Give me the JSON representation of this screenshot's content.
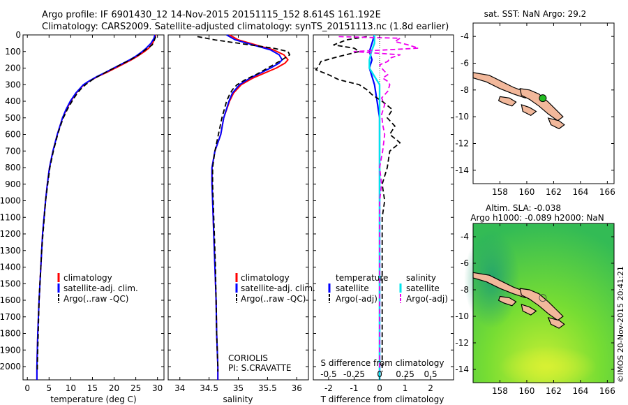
{
  "header": {
    "line1": "Argo profile: IF 6901430_12 14-Nov-2015 20151115_152 8.614S 161.192E",
    "line2": "Climatology: CARS2009. Satellite-adjusted climatology: synTS_20151113.nc (1.8d earlier)"
  },
  "colors": {
    "climatology": "#ff0000",
    "satellite": "#0000ff",
    "argo": "#000000",
    "sat_salinity": "#00e5ee",
    "argo_salinity_diff": "#ee00ee",
    "land": "#f2b89b",
    "float_marker": "#22bb22",
    "sla_field": "#55cc44"
  },
  "legend": {
    "climatology": "climatology",
    "satellite_adj": "satellite-adj. clim.",
    "argo_raw": "Argo(..raw -QC)",
    "temperature_head": "temperature",
    "salinity_head": "salinity",
    "satellite": "satellite",
    "argo_adj": "Argo(-adj)"
  },
  "credits": {
    "centre": "CORIOLIS",
    "pi": "PI: S.CRAVATTE"
  },
  "side_label": "©IMOS 20-Nov-2015 20:41:21",
  "chart_data": [
    {
      "type": "line",
      "panel": "temperature",
      "xlabel": "temperature (deg C)",
      "xlim": [
        -1,
        31.5
      ],
      "ylim": [
        2080,
        0
      ],
      "xticks": [
        0,
        5,
        10,
        15,
        20,
        25,
        30
      ],
      "yticks": [
        0,
        100,
        200,
        300,
        400,
        500,
        600,
        700,
        800,
        900,
        1000,
        1100,
        1200,
        1300,
        1400,
        1500,
        1600,
        1700,
        1800,
        1900,
        2000
      ],
      "series": [
        {
          "name": "climatology",
          "depth": [
            0,
            20,
            50,
            80,
            100,
            130,
            150,
            180,
            200,
            230,
            250,
            280,
            300,
            350,
            400,
            450,
            500,
            600,
            700,
            800,
            900,
            1000,
            1200,
            1400,
            1600,
            1800,
            2000,
            2080
          ],
          "values": [
            29.6,
            29.4,
            28.9,
            28.0,
            27.0,
            25.3,
            24.0,
            21.8,
            20.3,
            18.0,
            16.3,
            14.2,
            13.0,
            11.3,
            10.0,
            9.0,
            8.1,
            6.9,
            5.9,
            5.1,
            4.6,
            4.2,
            3.5,
            3.1,
            2.7,
            2.4,
            2.2,
            2.2
          ]
        },
        {
          "name": "satellite-adj. clim.",
          "depth": [
            0,
            20,
            50,
            80,
            100,
            130,
            150,
            180,
            200,
            230,
            250,
            280,
            300,
            350,
            400,
            450,
            500,
            600,
            700,
            800,
            900,
            1000,
            1200,
            1400,
            1600,
            1800,
            2000,
            2080
          ],
          "values": [
            29.4,
            29.2,
            28.5,
            27.4,
            26.5,
            24.9,
            23.6,
            21.4,
            19.9,
            17.7,
            16.1,
            14.1,
            12.9,
            11.2,
            9.9,
            8.9,
            8.1,
            6.9,
            5.9,
            5.1,
            4.6,
            4.2,
            3.5,
            3.1,
            2.7,
            2.4,
            2.2,
            2.2
          ]
        },
        {
          "name": "Argo(..raw -QC)",
          "depth": [
            10,
            30,
            60,
            90,
            120,
            150,
            180,
            210,
            240,
            270,
            300,
            330,
            360,
            400,
            450,
            500,
            550,
            600,
            700,
            800,
            900,
            1000,
            1100,
            1200,
            1300,
            1400,
            1500,
            1600,
            1700,
            1800,
            1900,
            2000,
            2030
          ],
          "values": [
            29.6,
            29.3,
            28.8,
            27.2,
            25.7,
            23.8,
            21.4,
            19.2,
            17.0,
            15.0,
            13.4,
            12.2,
            11.3,
            10.3,
            9.2,
            8.3,
            7.6,
            7.0,
            6.0,
            5.2,
            4.7,
            4.2,
            3.9,
            3.6,
            3.3,
            3.1,
            2.9,
            2.7,
            2.6,
            2.5,
            2.4,
            2.3,
            2.3
          ]
        }
      ]
    },
    {
      "type": "line",
      "panel": "salinity",
      "xlabel": "salinity",
      "xlim": [
        33.8,
        36.2
      ],
      "ylim": [
        2080,
        0
      ],
      "xticks": [
        34,
        34.5,
        35,
        35.5,
        36
      ],
      "series": [
        {
          "name": "climatology",
          "depth": [
            0,
            30,
            60,
            90,
            120,
            150,
            170,
            200,
            230,
            260,
            300,
            350,
            400,
            500,
            600,
            700,
            800,
            900,
            1000,
            1200,
            1400,
            1600,
            1800,
            2000,
            2080
          ],
          "values": [
            34.85,
            35.0,
            35.3,
            35.6,
            35.78,
            35.85,
            35.8,
            35.65,
            35.45,
            35.25,
            35.05,
            34.92,
            34.85,
            34.75,
            34.7,
            34.6,
            34.55,
            34.55,
            34.56,
            34.58,
            34.6,
            34.62,
            34.63,
            34.65,
            34.65
          ]
        },
        {
          "name": "satellite-adj. clim.",
          "depth": [
            0,
            30,
            60,
            90,
            120,
            150,
            170,
            200,
            230,
            260,
            300,
            350,
            400,
            500,
            600,
            700,
            800,
            900,
            1000,
            1200,
            1400,
            1600,
            1800,
            2000,
            2080
          ],
          "values": [
            34.8,
            34.95,
            35.25,
            35.55,
            35.7,
            35.75,
            35.7,
            35.55,
            35.38,
            35.2,
            35.02,
            34.9,
            34.84,
            34.75,
            34.7,
            34.6,
            34.55,
            34.55,
            34.56,
            34.58,
            34.6,
            34.62,
            34.63,
            34.65,
            34.65
          ]
        },
        {
          "name": "Argo(..raw -QC)",
          "depth": [
            10,
            30,
            60,
            80,
            100,
            120,
            150,
            180,
            210,
            240,
            270,
            300,
            330,
            360,
            400,
            450,
            500,
            600,
            700,
            800,
            900,
            1000,
            1200,
            1400,
            1600,
            1800,
            2000,
            2030
          ],
          "values": [
            34.3,
            34.6,
            35.2,
            35.6,
            35.85,
            35.88,
            35.75,
            35.6,
            35.45,
            35.3,
            35.12,
            34.98,
            34.9,
            34.85,
            34.8,
            34.76,
            34.72,
            34.66,
            34.6,
            34.56,
            34.56,
            34.57,
            34.59,
            34.61,
            34.62,
            34.63,
            34.65,
            34.65
          ]
        }
      ]
    },
    {
      "type": "line",
      "panel": "difference",
      "xlabel": "T difference from climatology",
      "xlabel_top": "S difference from climatology",
      "xlim": [
        -2.6,
        2.9
      ],
      "ylim": [
        2080,
        0
      ],
      "xticks": [
        -2,
        -1,
        0,
        1,
        2
      ],
      "xticks_S": [
        "-0.5",
        "-0.25",
        "0",
        "0.25",
        "0.5"
      ],
      "series": [
        {
          "name": "temperature satellite",
          "depth": [
            0,
            50,
            100,
            150,
            200,
            250,
            300,
            400,
            500,
            600,
            800,
            1000,
            1500,
            2000,
            2080
          ],
          "values": [
            -0.2,
            -0.3,
            -0.4,
            -0.3,
            -0.4,
            -0.3,
            -0.2,
            -0.1,
            0,
            0,
            0,
            0,
            0,
            0,
            0
          ]
        },
        {
          "name": "temperature Argo(-adj)",
          "depth": [
            10,
            30,
            60,
            80,
            100,
            130,
            160,
            190,
            210,
            240,
            270,
            300,
            330,
            360,
            400,
            450,
            500,
            550,
            600,
            650,
            700,
            800,
            900,
            1000,
            1100,
            1200,
            1300,
            1400,
            1500,
            1600,
            1700,
            1800,
            1900,
            2000,
            2030
          ],
          "values": [
            -0.5,
            -1.3,
            -1.8,
            -1.0,
            -0.8,
            -1.6,
            -2.3,
            -2.4,
            -2.5,
            -2.0,
            -1.6,
            -0.8,
            -0.5,
            -0.3,
            0.1,
            0.5,
            0.3,
            0.6,
            0.4,
            0.8,
            0.4,
            0.3,
            0.1,
            0.2,
            0.1,
            0.1,
            0.1,
            0.1,
            0.1,
            0.1,
            0.1,
            0.1,
            0.1,
            0.1,
            0.1
          ]
        },
        {
          "name": "salinity satellite",
          "depth": [
            0,
            50,
            100,
            150,
            200,
            250,
            300,
            400,
            500,
            600,
            800,
            1000,
            1500,
            2000,
            2080
          ],
          "values": [
            -0.05,
            -0.05,
            -0.08,
            -0.1,
            -0.1,
            -0.05,
            0,
            0,
            0,
            0,
            0,
            0,
            0,
            0,
            0
          ]
        },
        {
          "name": "salinity Argo(-adj)",
          "depth": [
            10,
            20,
            40,
            60,
            80,
            100,
            120,
            140,
            160,
            180,
            200,
            220,
            240,
            260,
            280,
            300,
            340,
            380,
            420,
            480,
            540,
            600,
            700,
            800,
            900,
            1000,
            1200,
            1400,
            1600,
            1800,
            2000,
            2030
          ],
          "values": [
            -0.4,
            0.2,
            0.15,
            0.28,
            0.38,
            -0.25,
            0.2,
            0.1,
            0.08,
            0,
            0.02,
            0.05,
            0.08,
            0.03,
            0.08,
            0.1,
            0.08,
            0.02,
            0.05,
            0.02,
            0.03,
            0.05,
            0.03,
            0,
            0.02,
            0,
            0,
            0,
            0,
            0,
            0,
            0
          ]
        }
      ]
    },
    {
      "type": "map",
      "panel": "sst_map",
      "title": "sat. SST: NaN Argo: 29.2",
      "xlim": [
        156,
        166.5
      ],
      "ylim": [
        -15,
        -3
      ],
      "xticks": [
        158,
        160,
        162,
        164,
        166
      ],
      "yticks": [
        -4,
        -6,
        -8,
        -10,
        -12,
        -14
      ],
      "argo_position": {
        "lon": 161.192,
        "lat": -8.614
      }
    },
    {
      "type": "map",
      "panel": "sla_map",
      "title_line1": "Altim. SLA: -0.038",
      "title_line2": "Argo h1000: -0.089 h2000: NaN",
      "xlim": [
        156,
        166.5
      ],
      "ylim": [
        -15,
        -3
      ],
      "xticks": [
        158,
        160,
        162,
        164,
        166
      ],
      "yticks": [
        -4,
        -6,
        -8,
        -10,
        -12,
        -14
      ],
      "argo_position": {
        "lon": 161.192,
        "lat": -8.614
      }
    }
  ]
}
